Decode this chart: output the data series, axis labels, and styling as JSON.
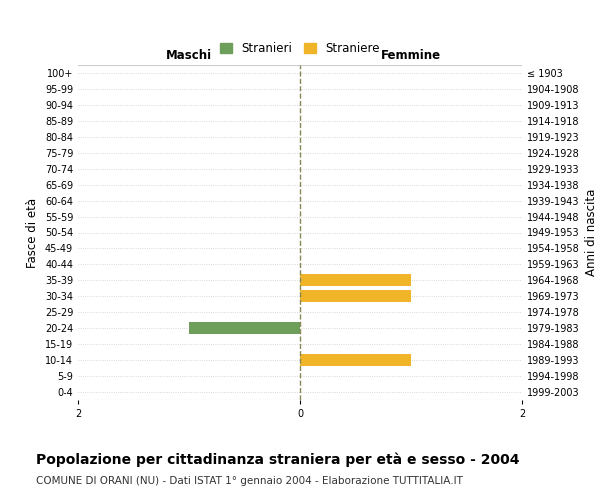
{
  "age_groups": [
    "100+",
    "95-99",
    "90-94",
    "85-89",
    "80-84",
    "75-79",
    "70-74",
    "65-69",
    "60-64",
    "55-59",
    "50-54",
    "45-49",
    "40-44",
    "35-39",
    "30-34",
    "25-29",
    "20-24",
    "15-19",
    "10-14",
    "5-9",
    "0-4"
  ],
  "birth_years": [
    "≤ 1903",
    "1904-1908",
    "1909-1913",
    "1914-1918",
    "1919-1923",
    "1924-1928",
    "1929-1933",
    "1934-1938",
    "1939-1943",
    "1944-1948",
    "1949-1953",
    "1954-1958",
    "1959-1963",
    "1964-1968",
    "1969-1973",
    "1974-1978",
    "1979-1983",
    "1984-1988",
    "1989-1993",
    "1994-1998",
    "1999-2003"
  ],
  "males": [
    0,
    0,
    0,
    0,
    0,
    0,
    0,
    0,
    0,
    0,
    0,
    0,
    0,
    0,
    0,
    0,
    1,
    0,
    0,
    0,
    0
  ],
  "females": [
    0,
    0,
    0,
    0,
    0,
    0,
    0,
    0,
    0,
    0,
    0,
    0,
    0,
    1,
    1,
    0,
    0,
    0,
    1,
    0,
    0
  ],
  "male_color": "#6d9e5a",
  "female_color": "#f0b429",
  "xlim": 2,
  "xlabel_left": "Maschi",
  "xlabel_right": "Femmine",
  "ylabel_left": "Fasce di età",
  "ylabel_right": "Anni di nascita",
  "legend_male": "Stranieri",
  "legend_female": "Straniere",
  "title": "Popolazione per cittadinanza straniera per età e sesso - 2004",
  "subtitle": "COMUNE DI ORANI (NU) - Dati ISTAT 1° gennaio 2004 - Elaborazione TUTTITALIA.IT",
  "grid_color": "#cccccc",
  "center_line_color": "#888855",
  "bg_color": "#ffffff",
  "bar_height": 0.75,
  "title_fontsize": 10,
  "subtitle_fontsize": 7.5,
  "tick_fontsize": 7,
  "label_fontsize": 8.5,
  "xticks": [
    -2,
    0,
    2
  ],
  "xtick_labels": [
    "2",
    "0",
    "2"
  ]
}
